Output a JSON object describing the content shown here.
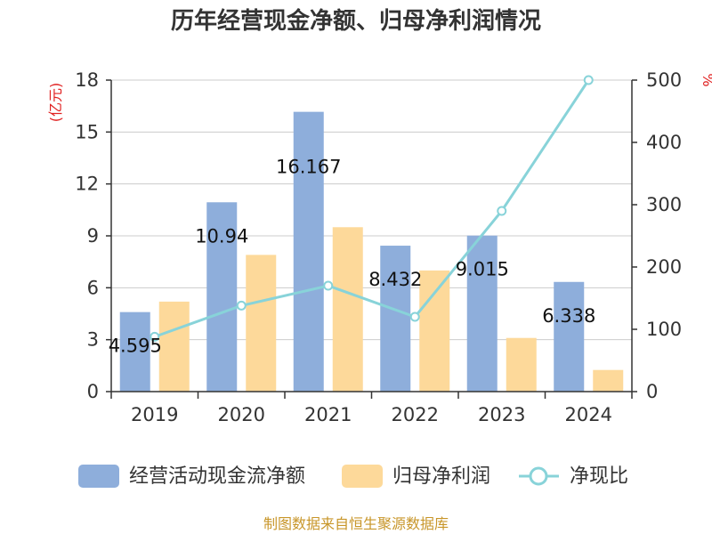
{
  "chart_data": {
    "type": "bar",
    "title": "历年经营现金净额、归母净利润情况",
    "categories": [
      "2019",
      "2020",
      "2021",
      "2022",
      "2023",
      "2024"
    ],
    "series": [
      {
        "name": "经营活动现金流净额",
        "type": "bar",
        "axis": "left",
        "values": [
          4.595,
          10.94,
          16.167,
          8.432,
          9.015,
          6.338
        ],
        "labels": [
          "4.595",
          "10.94",
          "16.167",
          "8.432",
          "9.015",
          "6.338"
        ]
      },
      {
        "name": "归母净利润",
        "type": "bar",
        "axis": "left",
        "values": [
          5.2,
          7.9,
          9.5,
          7.0,
          3.1,
          1.25
        ]
      },
      {
        "name": "净现比",
        "type": "line",
        "axis": "right",
        "values": [
          88,
          138,
          170,
          120,
          290,
          500
        ]
      }
    ],
    "y_left": {
      "unit": "(亿元)",
      "min": 0,
      "max": 18,
      "ticks": [
        "0",
        "3",
        "6",
        "9",
        "12",
        "15",
        "18"
      ]
    },
    "y_right": {
      "unit": "%",
      "min": 0,
      "max": 500,
      "ticks": [
        "0",
        "100",
        "200",
        "300",
        "400",
        "500"
      ]
    },
    "grid": true,
    "legend_position": "bottom",
    "colors": {
      "bar1": "#8eaedb",
      "bar2": "#fdd99a",
      "line": "#88d3d9",
      "unit": "#e02020",
      "source": "#c8962a"
    }
  },
  "source_text": "制图数据来自恒生聚源数据库"
}
